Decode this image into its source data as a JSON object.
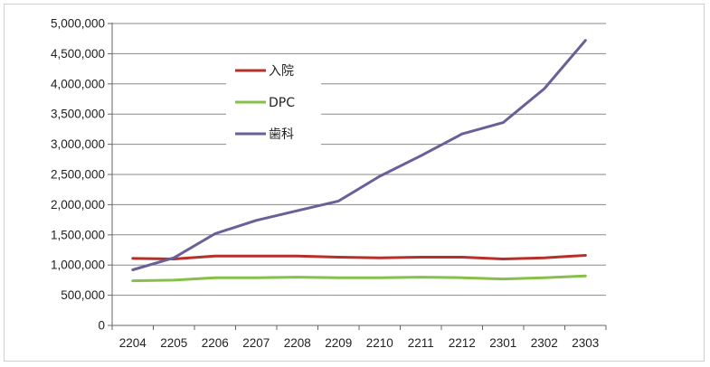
{
  "chart_data": {
    "type": "line",
    "title": "",
    "xlabel": "",
    "ylabel": "",
    "categories": [
      "2204",
      "2205",
      "2206",
      "2207",
      "2208",
      "2209",
      "2210",
      "2211",
      "2212",
      "2301",
      "2302",
      "2303"
    ],
    "ylim": [
      0,
      5000000
    ],
    "yticks": [
      0,
      500000,
      1000000,
      1500000,
      2000000,
      2500000,
      3000000,
      3500000,
      4000000,
      4500000,
      5000000
    ],
    "ytick_labels": [
      "0",
      "500,000",
      "1,000,000",
      "1,500,000",
      "2,000,000",
      "2,500,000",
      "3,000,000",
      "3,500,000",
      "4,000,000",
      "4,500,000",
      "5,000,000"
    ],
    "grid": "horizontal",
    "legend_position": "upper-left-inside",
    "series": [
      {
        "name": "入院",
        "color": "#b5302a",
        "values": [
          1110000,
          1100000,
          1150000,
          1150000,
          1150000,
          1130000,
          1120000,
          1130000,
          1130000,
          1100000,
          1120000,
          1160000
        ]
      },
      {
        "name": "DPC",
        "color": "#86c048",
        "values": [
          740000,
          750000,
          790000,
          790000,
          800000,
          790000,
          790000,
          800000,
          790000,
          770000,
          790000,
          820000
        ]
      },
      {
        "name": "歯科",
        "color": "#6a5f99",
        "values": [
          920000,
          1120000,
          1520000,
          1740000,
          1900000,
          2060000,
          2470000,
          2810000,
          3170000,
          3360000,
          3920000,
          4720000
        ]
      }
    ]
  }
}
